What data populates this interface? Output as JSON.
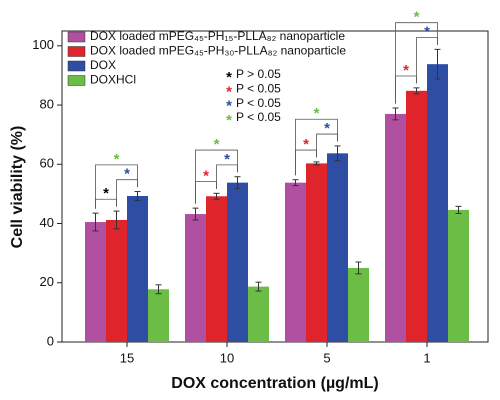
{
  "chart_data": {
    "type": "bar",
    "x_label": "DOX concentration (µg/mL)",
    "y_label": "Cell viability (%)",
    "categories": [
      "15",
      "10",
      "5",
      "1"
    ],
    "ylim": [
      0,
      105
    ],
    "yticks": [
      0,
      20,
      40,
      60,
      80,
      100
    ],
    "series": [
      {
        "name": "DOX loaded mPEG₄₅-PH₁₅-PLLA₈₂ nanoparticle",
        "color": "#b14fa0",
        "values": [
          40.5,
          43.2,
          53.8,
          77.0
        ],
        "errors": [
          3,
          2,
          1,
          2
        ]
      },
      {
        "name": "DOX loaded mPEG₄₅-PH₃₀-PLLA₈₂ nanoparticle",
        "color": "#e0242c",
        "values": [
          41.2,
          49.2,
          60.3,
          84.8
        ],
        "errors": [
          3,
          1,
          0.5,
          1
        ]
      },
      {
        "name": "DOX",
        "color": "#2d4ea3",
        "values": [
          49.3,
          53.8,
          63.7,
          93.8
        ],
        "errors": [
          1.5,
          2,
          2.5,
          5
        ]
      },
      {
        "name": "DOXHCl",
        "color": "#6bbd45",
        "values": [
          17.8,
          18.7,
          25.0,
          44.6
        ],
        "errors": [
          1.5,
          1.5,
          2,
          1.2
        ]
      }
    ],
    "annotations": [
      {
        "star": "*",
        "text": "P > 0.05",
        "color": "#000000"
      },
      {
        "star": "*",
        "text": "P < 0.05",
        "color": "#e0242c"
      },
      {
        "star": "*",
        "text": "P < 0.05",
        "color": "#2d4ea3"
      },
      {
        "star": "*",
        "text": "P < 0.05",
        "color": "#6bbd45"
      }
    ],
    "significance": [
      [
        {
          "bars": [
            0,
            1
          ],
          "label": "*",
          "color": "#000000"
        },
        {
          "bars": [
            1,
            2
          ],
          "label": "*",
          "color": "#2d4ea3"
        },
        {
          "bars": [
            0,
            2
          ],
          "label": "*",
          "color": "#6bbd45"
        }
      ],
      [
        {
          "bars": [
            0,
            1
          ],
          "label": "*",
          "color": "#e0242c"
        },
        {
          "bars": [
            1,
            2
          ],
          "label": "*",
          "color": "#2d4ea3"
        },
        {
          "bars": [
            0,
            2
          ],
          "label": "*",
          "color": "#6bbd45"
        }
      ],
      [
        {
          "bars": [
            0,
            1
          ],
          "label": "*",
          "color": "#e0242c"
        },
        {
          "bars": [
            1,
            2
          ],
          "label": "*",
          "color": "#2d4ea3"
        },
        {
          "bars": [
            0,
            2
          ],
          "label": "*",
          "color": "#6bbd45"
        }
      ],
      [
        {
          "bars": [
            0,
            1
          ],
          "label": "*",
          "color": "#e0242c"
        },
        {
          "bars": [
            1,
            2
          ],
          "label": "*",
          "color": "#2d4ea3"
        },
        {
          "bars": [
            0,
            2
          ],
          "label": "*",
          "color": "#6bbd45"
        }
      ]
    ]
  }
}
